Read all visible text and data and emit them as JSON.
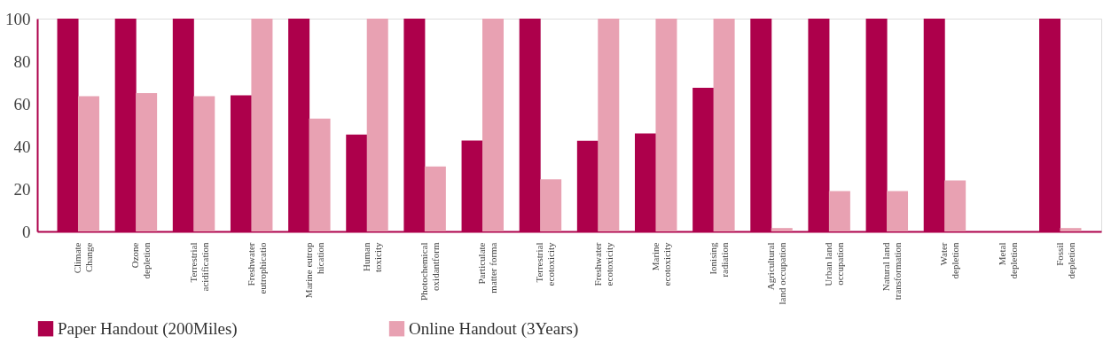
{
  "chart_data": {
    "type": "bar",
    "categories": [
      "Climate\nChange",
      "Ozone\ndepletion",
      "Terrestrial\nacidification",
      "Freshwater\neutrophicatio",
      "Marine eutrop\nhication",
      "Human\ntoxicity",
      "Photochemical\noxidantform",
      "Particulate\nmatter forma",
      "Terrestrial\necotoxicity",
      "Freshwater\necotoxicity",
      "Marine\necotoxicity",
      "Ionising\nradiation",
      "Agricultural\nland occupation",
      "Urban land\noccupation",
      "Natural land\ntransformation",
      "Water\ndepletion",
      "Metal\ndepletion",
      "Fossil\ndepletion"
    ],
    "series": [
      {
        "name": "Paper Handout (200Miles)",
        "color": "#ad004b",
        "values": [
          100,
          100,
          100,
          64,
          100,
          45.5,
          100,
          42.7,
          100,
          42.6,
          46,
          67.5,
          100,
          100,
          100,
          100,
          0,
          100
        ]
      },
      {
        "name": "Online Handout (3Years)",
        "color": "#e8a1b2",
        "values": [
          63.5,
          65,
          63.5,
          100,
          53,
          100,
          30.5,
          100,
          24.5,
          100,
          100,
          100,
          1.6,
          19,
          19,
          24,
          0,
          1.6
        ]
      }
    ],
    "ylim": [
      0,
      100
    ],
    "yticks": [
      0,
      20,
      40,
      60,
      80,
      100
    ],
    "grid": false,
    "legend": "bottom"
  }
}
